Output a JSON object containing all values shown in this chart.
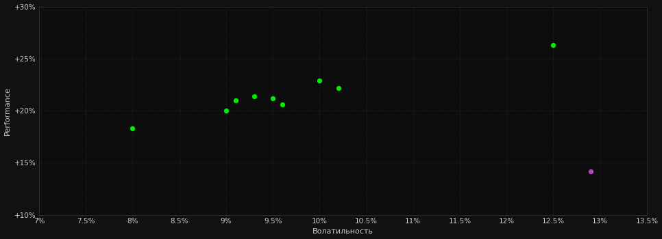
{
  "background_color": "#111111",
  "plot_bg_color": "#0d0d0d",
  "grid_color": "#2a2a2a",
  "text_color": "#cccccc",
  "xlabel": "Волатильность",
  "ylabel": "Performance",
  "xlim": [
    0.07,
    0.135
  ],
  "ylim": [
    0.1,
    0.3
  ],
  "xticks": [
    0.07,
    0.075,
    0.08,
    0.085,
    0.09,
    0.095,
    0.1,
    0.105,
    0.11,
    0.115,
    0.12,
    0.125,
    0.13,
    0.135
  ],
  "yticks": [
    0.1,
    0.15,
    0.2,
    0.25,
    0.3
  ],
  "xtick_labels": [
    "7%",
    "7.5%",
    "8%",
    "8.5%",
    "9%",
    "9.5%",
    "10%",
    "10.5%",
    "11%",
    "11.5%",
    "12%",
    "12.5%",
    "13%",
    "13.5%"
  ],
  "ytick_labels": [
    "+10%",
    "+15%",
    "+20%",
    "+25%",
    "+30%"
  ],
  "green_points": [
    [
      0.08,
      0.183
    ],
    [
      0.09,
      0.2
    ],
    [
      0.091,
      0.21
    ],
    [
      0.093,
      0.214
    ],
    [
      0.095,
      0.212
    ],
    [
      0.096,
      0.206
    ],
    [
      0.1,
      0.229
    ],
    [
      0.102,
      0.222
    ],
    [
      0.125,
      0.263
    ]
  ],
  "magenta_points": [
    [
      0.129,
      0.142
    ]
  ],
  "point_size": 18,
  "green_color": "#00ee00",
  "magenta_color": "#bb44bb",
  "spine_color": "#333333",
  "xlabel_fontsize": 8,
  "ylabel_fontsize": 8,
  "tick_fontsize": 7.5
}
